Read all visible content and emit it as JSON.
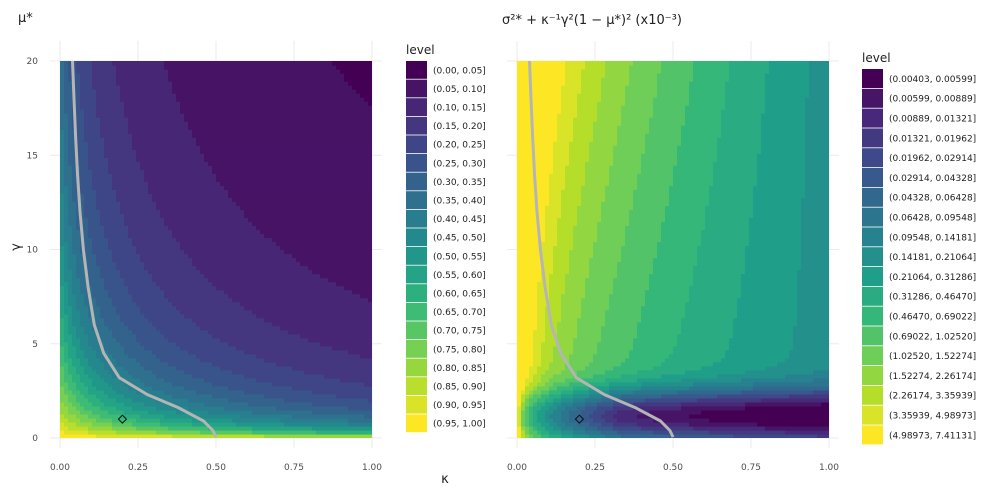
{
  "chart_data": [
    {
      "type": "contour",
      "title": "μ*",
      "xlabel": "κ",
      "ylabel": "γ",
      "xlim": [
        0,
        1
      ],
      "ylim": [
        0,
        20
      ],
      "x_ticks": [
        "0.00",
        "0.25",
        "0.50",
        "0.75",
        "1.00"
      ],
      "y_ticks": [
        "0",
        "5",
        "10",
        "15",
        "20"
      ],
      "x_tick_values": [
        0,
        0.25,
        0.5,
        0.75,
        1
      ],
      "y_tick_values": [
        0,
        5,
        10,
        15,
        20
      ],
      "grid": true,
      "legend_title": "level",
      "legend_position": "right",
      "levels": [
        "(0.00, 0.05]",
        "(0.05, 0.10]",
        "(0.10, 0.15]",
        "(0.15, 0.20]",
        "(0.20, 0.25]",
        "(0.25, 0.30]",
        "(0.30, 0.35]",
        "(0.35, 0.40]",
        "(0.40, 0.45]",
        "(0.45, 0.50]",
        "(0.50, 0.55]",
        "(0.55, 0.60]",
        "(0.60, 0.65]",
        "(0.65, 0.70]",
        "(0.70, 0.75]",
        "(0.75, 0.80]",
        "(0.80, 0.85]",
        "(0.85, 0.90]",
        "(0.90, 0.95]",
        "(0.95, 1.00]"
      ],
      "palette": "viridis",
      "optimal_curve": {
        "color": "#b5b5b5",
        "points": [
          [
            0.04,
            20
          ],
          [
            0.045,
            18
          ],
          [
            0.05,
            16
          ],
          [
            0.056,
            14
          ],
          [
            0.064,
            12
          ],
          [
            0.075,
            10
          ],
          [
            0.09,
            8
          ],
          [
            0.11,
            6
          ],
          [
            0.14,
            4.5
          ],
          [
            0.19,
            3.2
          ],
          [
            0.28,
            2.3
          ],
          [
            0.38,
            1.6
          ],
          [
            0.46,
            0.9
          ],
          [
            0.49,
            0.4
          ],
          [
            0.5,
            0.05
          ]
        ]
      },
      "marker": {
        "shape": "diamond",
        "x": 0.2,
        "y": 1
      }
    },
    {
      "type": "contour",
      "title": "σ²* + κ⁻¹γ²(1 − μ*)²  (x10⁻³)",
      "xlabel": "",
      "ylabel": "",
      "xlim": [
        0,
        1
      ],
      "ylim": [
        0,
        20
      ],
      "x_ticks": [
        "0.00",
        "0.25",
        "0.50",
        "0.75",
        "1.00"
      ],
      "y_ticks": [],
      "x_tick_values": [
        0,
        0.25,
        0.5,
        0.75,
        1
      ],
      "y_tick_values": [
        0,
        5,
        10,
        15,
        20
      ],
      "grid": true,
      "legend_title": "level",
      "legend_position": "right",
      "levels": [
        "(0.00403, 0.00599]",
        "(0.00599, 0.00889]",
        "(0.00889, 0.01321]",
        "(0.01321, 0.01962]",
        "(0.01962, 0.02914]",
        "(0.02914, 0.04328]",
        "(0.04328, 0.06428]",
        "(0.06428, 0.09548]",
        "(0.09548, 0.14181]",
        "(0.14181, 0.21064]",
        "(0.21064, 0.31286]",
        "(0.31286, 0.46470]",
        "(0.46470, 0.69022]",
        "(0.69022, 1.02520]",
        "(1.02520, 1.52274]",
        "(1.52274, 2.26174]",
        "(2.26174, 3.35939]",
        "(3.35939, 4.98973]",
        "(4.98973, 7.41131]"
      ],
      "palette": "viridis",
      "optimal_curve": {
        "color": "#b5b5b5",
        "points": [
          [
            0.04,
            20
          ],
          [
            0.045,
            18
          ],
          [
            0.05,
            16
          ],
          [
            0.056,
            14
          ],
          [
            0.064,
            12
          ],
          [
            0.075,
            10
          ],
          [
            0.09,
            8
          ],
          [
            0.11,
            6
          ],
          [
            0.14,
            4.5
          ],
          [
            0.19,
            3.2
          ],
          [
            0.28,
            2.3
          ],
          [
            0.38,
            1.6
          ],
          [
            0.46,
            0.9
          ],
          [
            0.49,
            0.4
          ],
          [
            0.5,
            0.05
          ]
        ]
      },
      "marker": {
        "shape": "diamond",
        "x": 0.2,
        "y": 1
      }
    }
  ]
}
